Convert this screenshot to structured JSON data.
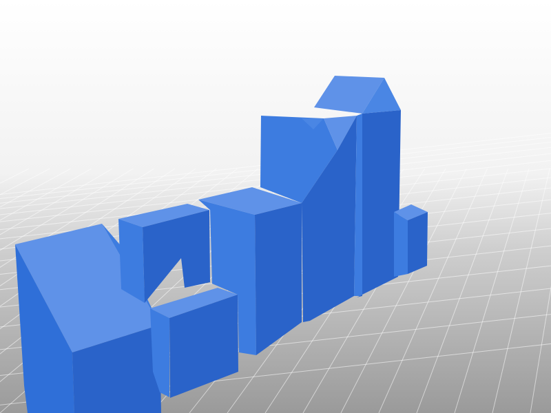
{
  "scene": {
    "subject": "3d-model-preview",
    "colors": {
      "background_top": "#ffffff",
      "background_bottom": "#c9c9c9",
      "bed": "#9f9f9f",
      "grid_line": "#ffffff",
      "face_top": "#5f92e8",
      "face_left": "#3d7ce0",
      "face_front": "#2f6fd8",
      "face_right": "#2a63c9",
      "face_dark": "#215bbd"
    },
    "objects": [
      {
        "name": "slanted-block-front-left"
      },
      {
        "name": "cube-block-left"
      },
      {
        "name": "small-cube-front"
      },
      {
        "name": "tall-block-center"
      },
      {
        "name": "tallest-notched-block"
      },
      {
        "name": "peaked-tower-block"
      },
      {
        "name": "small-cube-right"
      }
    ]
  }
}
